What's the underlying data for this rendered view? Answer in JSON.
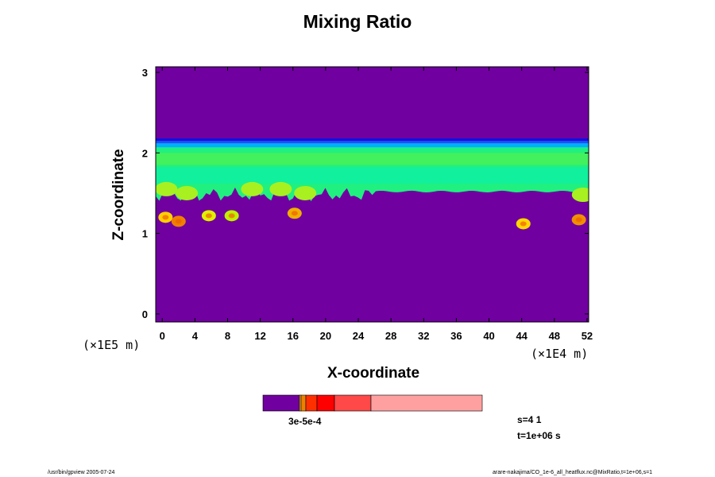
{
  "chart_data": {
    "type": "heatmap",
    "title": "Mixing Ratio",
    "xlabel": "X-coordinate",
    "ylabel": "Z-coordinate",
    "x_multiplier": "(×1E4 m)",
    "y_multiplier": "(×1E5 m)",
    "x_ticks": [
      "0",
      "4",
      "8",
      "12",
      "16",
      "20",
      "24",
      "28",
      "32",
      "36",
      "40",
      "44",
      "48",
      "52"
    ],
    "y_ticks": [
      "0",
      "1",
      "2",
      "3"
    ],
    "xlim": [
      -0.8,
      52.2
    ],
    "ylim": [
      -0.1,
      3.07
    ],
    "fields": {
      "background": "#7000A0",
      "upper_edge": {
        "z": 2.18,
        "color": "#1010E0"
      },
      "main_layer": {
        "z_top": 2.13,
        "z_bottom_left": 1.48,
        "z_bottom_right": 1.52,
        "colors": [
          "#2050F0",
          "#00B0FF",
          "#00F0C0",
          "#20F080",
          "#60F040",
          "#A8F020"
        ]
      },
      "plumes": [
        {
          "x": 0.4,
          "z": 1.2,
          "color": "#FFD000"
        },
        {
          "x": 2.0,
          "z": 1.15,
          "color": "#F08000"
        },
        {
          "x": 5.7,
          "z": 1.22,
          "color": "#E0F000"
        },
        {
          "x": 8.5,
          "z": 1.22,
          "color": "#C0F000"
        },
        {
          "x": 16.2,
          "z": 1.25,
          "color": "#F0B000"
        },
        {
          "x": 44.2,
          "z": 1.12,
          "color": "#FFD800"
        },
        {
          "x": 51.0,
          "z": 1.17,
          "color": "#F09000"
        }
      ]
    },
    "colorbar": {
      "colors": [
        "#7000A0",
        "#FFC000",
        "#F08000",
        "#FF3000",
        "#FF0000",
        "#FF4848",
        "#FFA0A0"
      ],
      "label": "3e-5e-4"
    }
  },
  "info": {
    "s": "s=4 1",
    "t": "t=1e+06 s"
  },
  "footer": {
    "left": "/usr/bin/gpview 2005-07-24",
    "right": "arare-nakajima/CO_1e-6_all_heatflux.nc@MixRatio,t=1e+06,s=1"
  }
}
